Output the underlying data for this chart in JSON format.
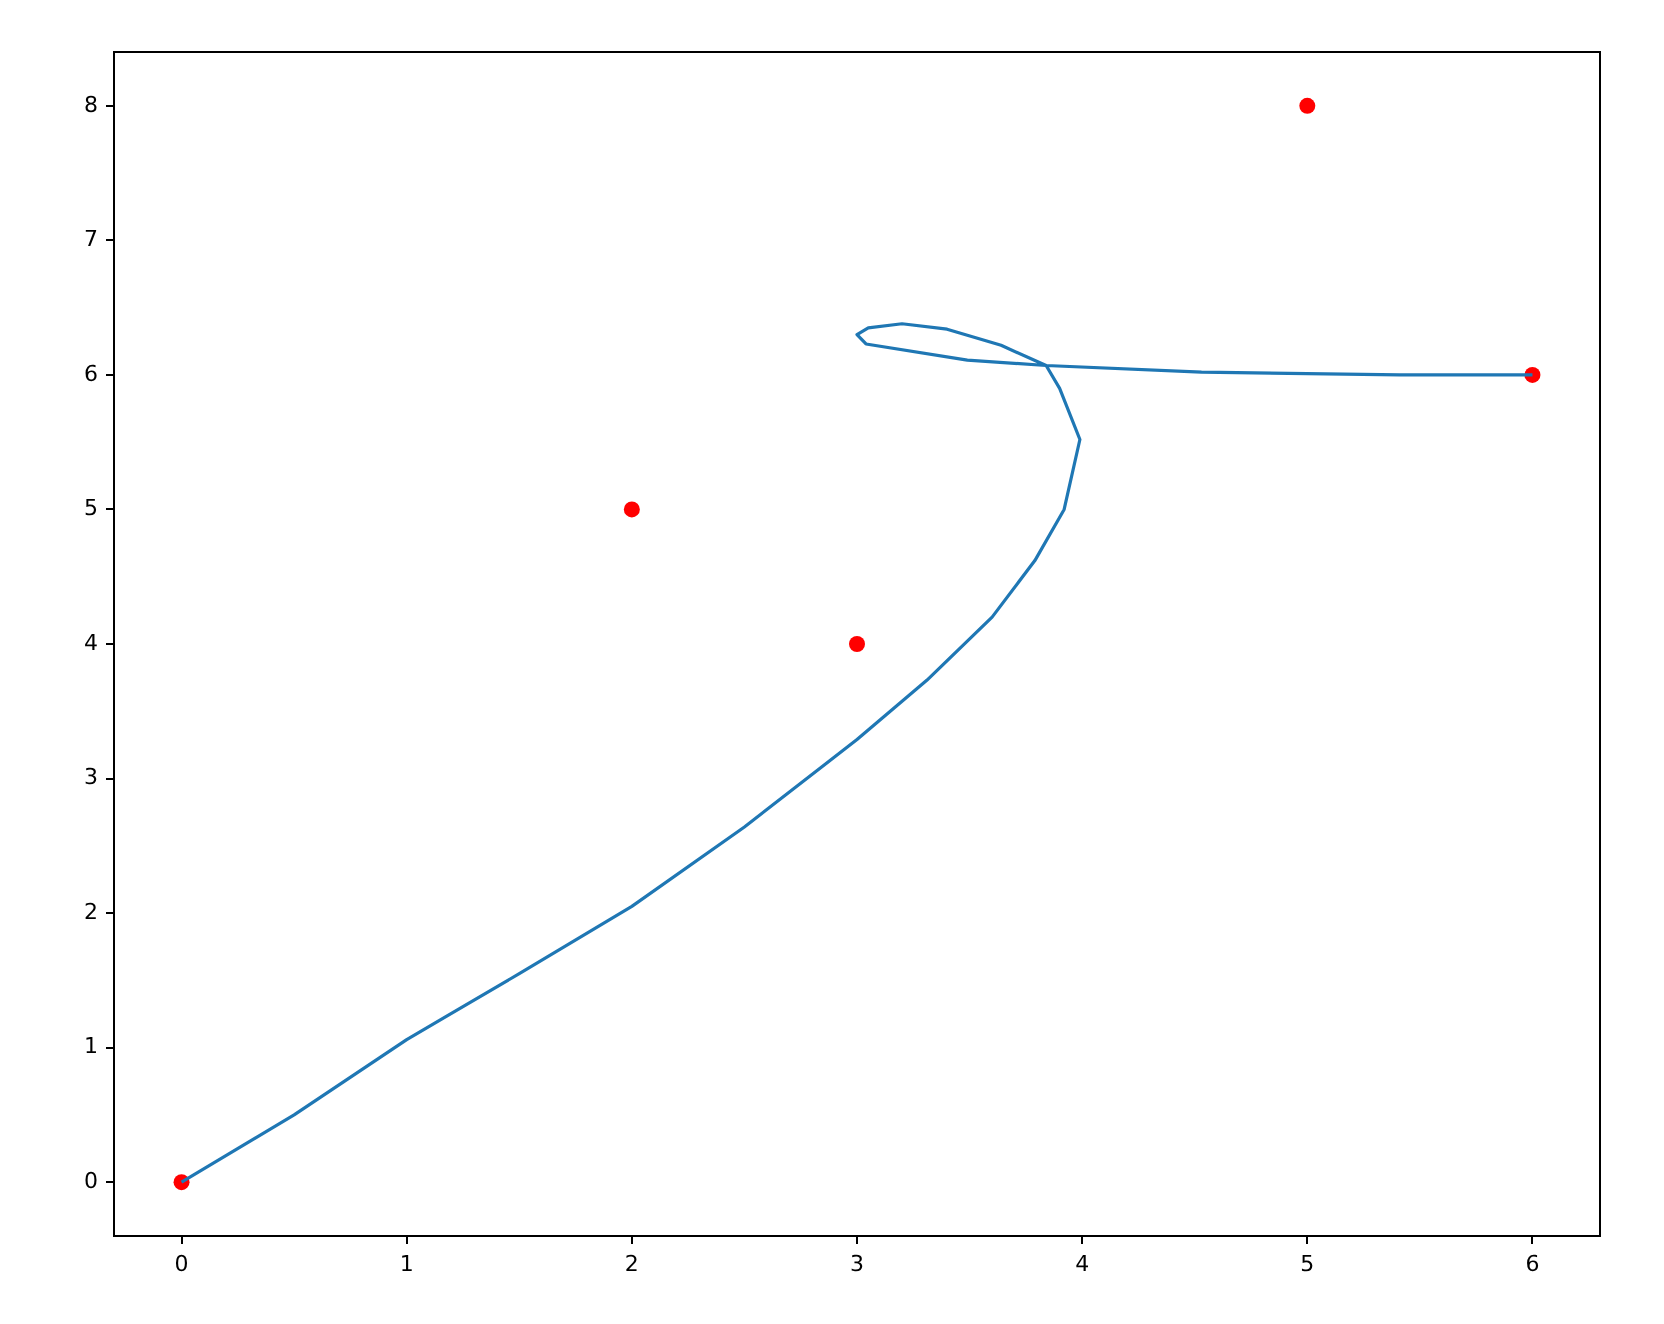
{
  "chart_data": {
    "type": "scatter",
    "xlim": [
      -0.3,
      6.3
    ],
    "ylim": [
      -0.4,
      8.4
    ],
    "xticks": [
      0,
      1,
      2,
      3,
      4,
      5,
      6
    ],
    "yticks": [
      0,
      1,
      2,
      3,
      4,
      5,
      6,
      7,
      8
    ],
    "grid": false,
    "legend": false,
    "series": [
      {
        "type": "line",
        "color": "#1f77b4",
        "marker": "none",
        "x": [
          0,
          0.5,
          1,
          1.5,
          2,
          2.5,
          3,
          3.31,
          3.6,
          3.79,
          3.92,
          3.99,
          3.9,
          3.84,
          3.64,
          3.4,
          3.2,
          3.05,
          3.0,
          3.04,
          3.49,
          3.84,
          4.53,
          5.41,
          6
        ],
        "values": [
          0,
          0.5,
          1.06,
          1.55,
          2.05,
          2.64,
          3.29,
          3.73,
          4.2,
          4.62,
          5.0,
          5.52,
          5.9,
          6.07,
          6.22,
          6.34,
          6.38,
          6.35,
          6.3,
          6.23,
          6.11,
          6.07,
          6.02,
          6.0,
          6
        ]
      },
      {
        "type": "scatter",
        "color": "#ff0000",
        "marker": "circle",
        "x": [
          0,
          2,
          3,
          5,
          6
        ],
        "values": [
          0,
          5,
          4,
          8,
          6
        ]
      }
    ]
  }
}
